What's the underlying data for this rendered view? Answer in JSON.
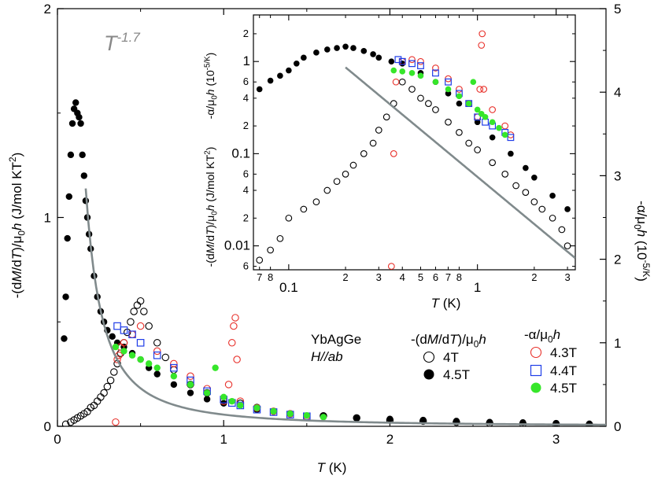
{
  "chart_data": [
    {
      "type": "scatter",
      "role": "main",
      "xlabel": "T (K)",
      "ylabel_left": "-(dM/dT)/μ0h  (J/mol KT^2)",
      "ylabel_right": "-α/μ0h (10^-5/K)",
      "xlim": [
        0,
        3.3
      ],
      "ylim_left": [
        0,
        2
      ],
      "ylim_right": [
        0,
        5
      ],
      "x_ticks": [
        0,
        1,
        2,
        3
      ],
      "y_ticks_left": [
        0,
        1,
        2
      ],
      "y_ticks_right": [
        0,
        1,
        2,
        3,
        4,
        5
      ],
      "annotation": "T^-1.7",
      "legend_block": {
        "sample": "YbAgGe",
        "field_dir": "H//ab",
        "group_dm": "-(dM/dT)/μ0h",
        "group_alpha": "-α/μ0h"
      },
      "fit": {
        "name": "T^-1.7",
        "color": "#808a8c",
        "A": 0.056,
        "exponent": -1.7
      },
      "series": [
        {
          "name": "4T",
          "axis": "left",
          "marker": "open-circle",
          "color": "#000000",
          "x": [
            0.05,
            0.08,
            0.1,
            0.12,
            0.14,
            0.16,
            0.18,
            0.2,
            0.22,
            0.24,
            0.26,
            0.28,
            0.3,
            0.32,
            0.34,
            0.36,
            0.38,
            0.4,
            0.42,
            0.44,
            0.46,
            0.48,
            0.5,
            0.52,
            0.55,
            0.6,
            0.65,
            0.7,
            0.8,
            0.9,
            1.0,
            1.1,
            1.2,
            1.4,
            1.6,
            1.8,
            2.0,
            2.2,
            2.4,
            2.6,
            2.8,
            3.0,
            3.2
          ],
          "y": [
            0.01,
            0.02,
            0.03,
            0.04,
            0.05,
            0.06,
            0.07,
            0.09,
            0.1,
            0.12,
            0.14,
            0.16,
            0.19,
            0.22,
            0.26,
            0.3,
            0.35,
            0.4,
            0.45,
            0.5,
            0.55,
            0.58,
            0.6,
            0.55,
            0.48,
            0.4,
            0.33,
            0.27,
            0.2,
            0.16,
            0.13,
            0.11,
            0.09,
            0.06,
            0.05,
            0.04,
            0.03,
            0.025,
            0.02,
            0.015,
            0.012,
            0.01,
            0.008
          ]
        },
        {
          "name": "4.5T",
          "axis": "left",
          "marker": "filled-circle",
          "color": "#000000",
          "x": [
            0.04,
            0.05,
            0.06,
            0.07,
            0.08,
            0.09,
            0.1,
            0.11,
            0.12,
            0.13,
            0.14,
            0.15,
            0.16,
            0.17,
            0.18,
            0.19,
            0.2,
            0.22,
            0.24,
            0.26,
            0.28,
            0.3,
            0.33,
            0.36,
            0.4,
            0.45,
            0.5,
            0.55,
            0.6,
            0.7,
            0.8,
            0.9,
            1.0,
            1.2,
            1.4,
            1.6,
            1.8,
            2.0,
            2.2,
            2.4,
            2.6,
            2.8,
            3.0,
            3.2
          ],
          "y": [
            0.42,
            0.62,
            0.9,
            1.1,
            1.3,
            1.45,
            1.52,
            1.55,
            1.5,
            1.48,
            1.45,
            1.3,
            1.2,
            1.08,
            1.0,
            0.92,
            0.85,
            0.72,
            0.62,
            0.55,
            0.5,
            0.46,
            0.43,
            0.4,
            0.38,
            0.35,
            0.32,
            0.28,
            0.25,
            0.2,
            0.16,
            0.13,
            0.11,
            0.08,
            0.06,
            0.05,
            0.04,
            0.035,
            0.03,
            0.025,
            0.02,
            0.018,
            0.015,
            0.012
          ]
        },
        {
          "name": "4.3T",
          "axis": "right",
          "marker": "open-circle",
          "color": "#e8302a",
          "x": [
            0.35,
            0.36,
            0.37,
            0.38,
            0.4,
            0.45,
            0.5,
            0.6,
            0.7,
            0.8,
            0.9,
            1.0,
            1.03,
            1.05,
            1.06,
            1.07,
            1.08,
            1.1,
            1.2,
            1.3,
            1.4,
            1.5
          ],
          "y": [
            0.05,
            0.8,
            0.85,
            0.95,
            1.0,
            1.1,
            1.2,
            0.9,
            0.75,
            0.6,
            0.45,
            0.3,
            0.5,
            1.0,
            1.2,
            1.3,
            0.8,
            0.3,
            0.22,
            0.18,
            0.15,
            0.12
          ]
        },
        {
          "name": "4.4T",
          "axis": "right",
          "marker": "open-square",
          "color": "#1f3de8",
          "x": [
            0.36,
            0.4,
            0.45,
            0.5,
            0.6,
            0.7,
            0.8,
            0.9,
            1.0,
            1.05,
            1.1,
            1.2,
            1.3,
            1.4,
            1.5
          ],
          "y": [
            1.2,
            1.15,
            1.1,
            1.0,
            0.85,
            0.7,
            0.55,
            0.42,
            0.32,
            0.28,
            0.25,
            0.2,
            0.17,
            0.14,
            0.12
          ]
        },
        {
          "name": "4.5T",
          "axis": "right",
          "marker": "filled-circle",
          "color": "#36e62a",
          "x": [
            0.35,
            0.4,
            0.45,
            0.5,
            0.55,
            0.6,
            0.7,
            0.8,
            0.9,
            0.95,
            1.0,
            1.05,
            1.1,
            1.2,
            1.3,
            1.4,
            1.5,
            1.6
          ],
          "y": [
            0.95,
            0.9,
            0.85,
            0.8,
            0.75,
            0.7,
            0.6,
            0.5,
            0.4,
            0.7,
            0.35,
            0.3,
            0.25,
            0.22,
            0.18,
            0.15,
            0.13,
            0.11
          ]
        }
      ]
    },
    {
      "type": "scatter",
      "role": "inset",
      "scale": "log-log",
      "xlabel": "T (K)",
      "ylabel_left": "-(dM/dT)/μ0h (J/mol KT^2)",
      "ylabel_right": "-α/μ0h  (10^-5/K)",
      "xlim": [
        0.065,
        3.3
      ],
      "ylim_left": [
        0.0055,
        3.2
      ],
      "ylim_right": [
        0.0055,
        3.2
      ],
      "x_major_ticks": [
        0.1,
        1
      ],
      "x_major_labels": [
        "0.1",
        "1"
      ],
      "x_minor_ticks": [
        0.07,
        0.08,
        0.2,
        0.3,
        0.4,
        0.5,
        0.6,
        0.7,
        0.8,
        2,
        3
      ],
      "x_minor_labels": [
        "7",
        "8",
        "2",
        "3",
        "4",
        "5",
        "6",
        "7",
        "8",
        "2",
        "3"
      ],
      "y_major_ticks": [
        0.01,
        0.1,
        1
      ],
      "y_major_labels": [
        "0.01",
        "0.1",
        "1"
      ],
      "y_minor_ticks": [
        0.006,
        0.02,
        0.04,
        0.06,
        0.2,
        0.4,
        0.6,
        2
      ],
      "y_minor_labels": [
        "6",
        "2",
        "4",
        "6",
        "2",
        "4",
        "6",
        "2"
      ],
      "fit": {
        "name": "T^-1.7",
        "color": "#808a8c",
        "A": 0.056,
        "exponent": -1.7
      },
      "series": [
        {
          "name": "4T",
          "marker": "open-circle",
          "color": "#000000",
          "x": [
            0.07,
            0.08,
            0.09,
            0.1,
            0.12,
            0.14,
            0.16,
            0.18,
            0.2,
            0.22,
            0.25,
            0.28,
            0.3,
            0.33,
            0.36,
            0.4,
            0.45,
            0.5,
            0.55,
            0.6,
            0.7,
            0.8,
            0.9,
            1.0,
            1.2,
            1.4,
            1.6,
            1.8,
            2.0,
            2.2,
            2.5,
            2.8,
            3.0
          ],
          "y": [
            0.007,
            0.009,
            0.012,
            0.02,
            0.025,
            0.03,
            0.04,
            0.05,
            0.06,
            0.075,
            0.1,
            0.13,
            0.18,
            0.25,
            0.35,
            0.6,
            0.5,
            0.4,
            0.35,
            0.3,
            0.22,
            0.17,
            0.13,
            0.11,
            0.08,
            0.06,
            0.045,
            0.038,
            0.03,
            0.025,
            0.02,
            0.015,
            0.01
          ]
        },
        {
          "name": "4.5T",
          "marker": "filled-circle",
          "color": "#000000",
          "x": [
            0.07,
            0.08,
            0.09,
            0.1,
            0.11,
            0.12,
            0.14,
            0.16,
            0.18,
            0.2,
            0.22,
            0.25,
            0.28,
            0.3,
            0.35,
            0.4,
            0.5,
            0.6,
            0.7,
            0.8,
            1.0,
            1.2,
            1.5,
            1.8,
            2.0,
            2.5,
            3.0
          ],
          "y": [
            0.5,
            0.62,
            0.7,
            0.8,
            0.95,
            1.1,
            1.25,
            1.35,
            1.4,
            1.45,
            1.4,
            1.3,
            1.2,
            1.1,
            1.0,
            0.95,
            0.75,
            0.6,
            0.45,
            0.35,
            0.22,
            0.15,
            0.1,
            0.07,
            0.055,
            0.035,
            0.025
          ]
        },
        {
          "name": "4.3T",
          "marker": "open-circle",
          "color": "#e8302a",
          "x": [
            0.35,
            0.36,
            0.37,
            0.4,
            0.45,
            0.5,
            0.6,
            0.7,
            0.8,
            0.9,
            1.0,
            1.03,
            1.05,
            1.06,
            1.08,
            1.2,
            1.4,
            1.5
          ],
          "y": [
            0.006,
            0.1,
            0.6,
            1.0,
            1.05,
            1.0,
            0.85,
            0.65,
            0.5,
            0.35,
            0.25,
            0.5,
            1.5,
            2.0,
            0.5,
            0.3,
            0.2,
            0.16
          ]
        },
        {
          "name": "4.4T",
          "marker": "open-square",
          "color": "#1f3de8",
          "x": [
            0.38,
            0.4,
            0.45,
            0.5,
            0.6,
            0.7,
            0.8,
            0.9,
            1.0,
            1.1,
            1.2,
            1.4,
            1.5
          ],
          "y": [
            1.05,
            1.0,
            0.95,
            0.9,
            0.75,
            0.6,
            0.45,
            0.35,
            0.25,
            0.22,
            0.2,
            0.17,
            0.15
          ]
        },
        {
          "name": "4.5T",
          "marker": "filled-circle",
          "color": "#36e62a",
          "x": [
            0.36,
            0.4,
            0.45,
            0.5,
            0.6,
            0.7,
            0.8,
            0.9,
            0.95,
            1.0,
            1.05,
            1.1,
            1.2,
            1.3,
            1.4
          ],
          "y": [
            0.8,
            0.78,
            0.75,
            0.7,
            0.6,
            0.5,
            0.42,
            0.35,
            0.6,
            0.3,
            0.27,
            0.25,
            0.22,
            0.19,
            0.16
          ]
        }
      ]
    }
  ]
}
